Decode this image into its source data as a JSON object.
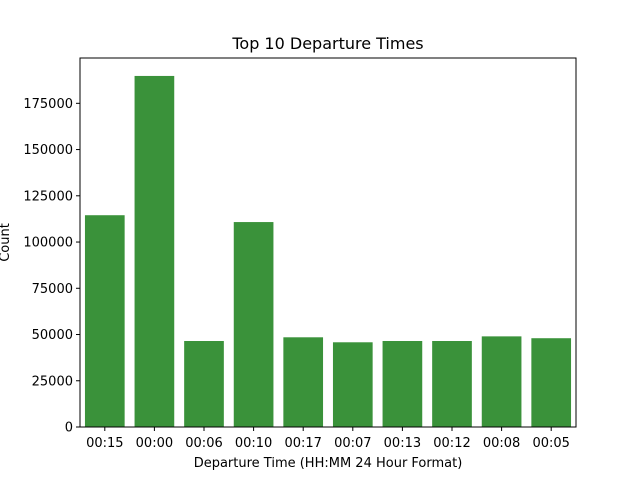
{
  "chart_data": {
    "type": "bar",
    "title": "Top 10 Departure Times",
    "xlabel": "Departure Time (HH:MM 24 Hour Format)",
    "ylabel": "Count",
    "categories": [
      "00:15",
      "00:00",
      "00:06",
      "00:10",
      "00:17",
      "00:07",
      "00:13",
      "00:12",
      "00:08",
      "00:05"
    ],
    "values": [
      114500,
      189800,
      46500,
      110800,
      48500,
      45800,
      46500,
      46500,
      49000,
      48000
    ],
    "ylim": [
      0,
      199500
    ],
    "yticks": [
      0,
      25000,
      50000,
      75000,
      100000,
      125000,
      150000,
      175000
    ],
    "ytick_labels": [
      "0",
      "25000",
      "50000",
      "75000",
      "100000",
      "125000",
      "150000",
      "175000"
    ],
    "bar_color": "#3a923a",
    "grid": false,
    "legend": "none"
  }
}
